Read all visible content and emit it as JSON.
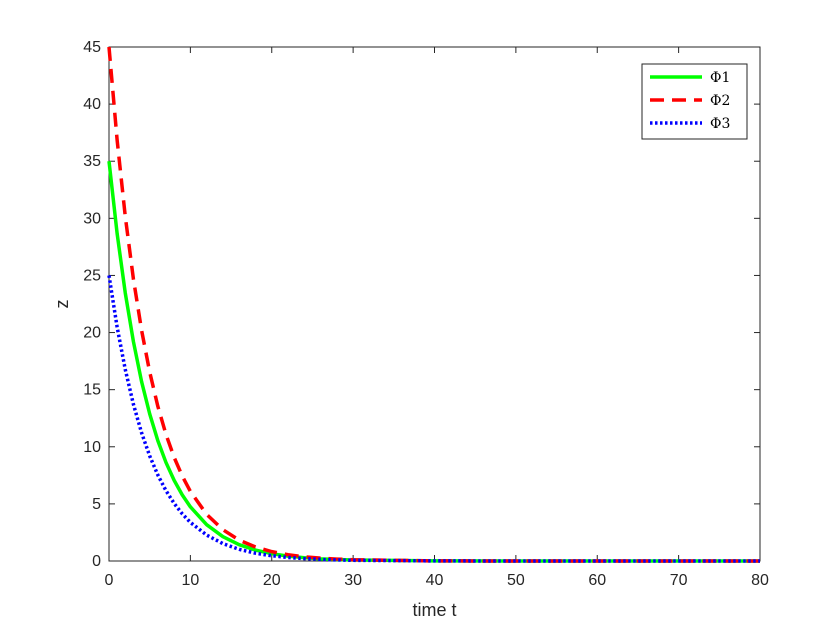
{
  "chart_data": {
    "type": "line",
    "xlabel": "time t",
    "ylabel": "z",
    "xlim": [
      0,
      80
    ],
    "ylim": [
      0,
      45
    ],
    "x_ticks": [
      0,
      10,
      20,
      30,
      40,
      50,
      60,
      70,
      80
    ],
    "y_ticks": [
      0,
      5,
      10,
      15,
      20,
      25,
      30,
      35,
      40,
      45
    ],
    "grid": false,
    "legend_position": "top-right",
    "x": [
      0,
      1,
      2,
      3,
      4,
      5,
      6,
      7,
      8,
      9,
      10,
      12,
      14,
      16,
      18,
      20,
      22,
      24,
      26,
      28,
      30,
      40,
      50,
      60,
      70,
      80
    ],
    "series": [
      {
        "name": "Φ1",
        "color": "#00ff00",
        "style": "solid",
        "values": [
          35,
          28.66,
          23.46,
          19.21,
          15.72,
          12.88,
          10.54,
          8.63,
          7.07,
          5.79,
          4.74,
          3.18,
          2.13,
          1.43,
          0.96,
          0.64,
          0.43,
          0.29,
          0.19,
          0.13,
          0.09,
          0.01,
          0,
          0,
          0,
          0
        ]
      },
      {
        "name": "Φ2",
        "color": "#ff0000",
        "style": "dashed",
        "values": [
          45,
          36.84,
          30.16,
          24.69,
          20.22,
          16.55,
          13.55,
          11.09,
          9.08,
          7.44,
          6.09,
          4.08,
          2.74,
          1.83,
          1.23,
          0.82,
          0.55,
          0.37,
          0.25,
          0.17,
          0.11,
          0.01,
          0,
          0,
          0,
          0
        ]
      },
      {
        "name": "Φ3",
        "color": "#0000ff",
        "style": "dotted",
        "values": [
          25,
          20.47,
          16.76,
          13.72,
          11.23,
          9.2,
          7.53,
          6.16,
          5.05,
          4.13,
          3.38,
          2.27,
          1.52,
          1.02,
          0.68,
          0.46,
          0.31,
          0.21,
          0.14,
          0.09,
          0.06,
          0.01,
          0,
          0,
          0,
          0
        ]
      }
    ]
  }
}
